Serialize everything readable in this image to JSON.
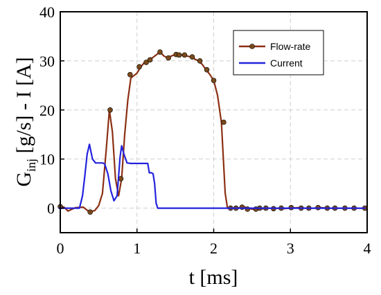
{
  "chart_data": {
    "type": "line",
    "xlabel": "t [ms]",
    "ylabel": {
      "base": "G",
      "sub": "inj",
      "rest": " [g/s]  - I [A]"
    },
    "xlim": [
      0,
      4
    ],
    "ylim": [
      -5,
      40
    ],
    "xticks": [
      "0",
      "1",
      "2",
      "3",
      "4"
    ],
    "yticks": [
      "0",
      "10",
      "20",
      "30",
      "40"
    ],
    "grid": true,
    "legend_position": "top-right",
    "series": [
      {
        "name": "Flow-rate",
        "color": "#8b2f12",
        "marker_fill": "#7a4a1c",
        "x": [
          -0.02,
          0.05,
          0.1,
          0.2,
          0.3,
          0.38,
          0.45,
          0.5,
          0.55,
          0.6,
          0.64,
          0.68,
          0.72,
          0.76,
          0.8,
          0.84,
          0.88,
          0.92,
          0.96,
          1.0,
          1.05,
          1.1,
          1.15,
          1.2,
          1.25,
          1.3,
          1.35,
          1.4,
          1.45,
          1.5,
          1.55,
          1.6,
          1.65,
          1.7,
          1.75,
          1.8,
          1.85,
          1.9,
          1.95,
          2.0,
          2.05,
          2.1,
          2.15,
          2.18,
          2.22,
          2.3,
          2.4,
          2.5,
          2.6,
          2.7,
          2.8,
          2.9,
          3.0,
          3.1,
          3.2,
          3.3,
          3.4,
          3.5,
          3.6,
          3.7,
          3.8,
          3.9,
          3.98
        ],
        "y": [
          0.3,
          0.2,
          -0.6,
          0.1,
          0.2,
          -0.8,
          -0.5,
          0.5,
          3.0,
          12.0,
          20.0,
          15.5,
          6.0,
          2.5,
          6.0,
          15.0,
          22.0,
          26.5,
          27.0,
          27.5,
          28.8,
          29.7,
          30.2,
          30.6,
          31.2,
          31.8,
          31.0,
          30.6,
          31.0,
          31.3,
          31.2,
          31.2,
          31.0,
          30.8,
          30.4,
          30.0,
          29.3,
          28.2,
          27.2,
          26.0,
          23.0,
          17.5,
          3.0,
          0.0,
          0.0,
          0.0,
          0.2,
          -0.2,
          -0.2,
          0.0,
          0.0,
          -0.1,
          0.0,
          0.1,
          0.0,
          0.0,
          0.1,
          0.0,
          0.0,
          0.0,
          0.0,
          0.0,
          0.0
        ],
        "markers_x": [
          0.0,
          0.39,
          0.65,
          0.79,
          0.91,
          1.03,
          1.12,
          1.17,
          1.3,
          1.41,
          1.51,
          1.55,
          1.62,
          1.72,
          1.82,
          1.91,
          2.0,
          2.13,
          2.22,
          2.29,
          2.37,
          2.44,
          2.55,
          2.6,
          2.68,
          2.78,
          2.88,
          3.01,
          3.14,
          3.24,
          3.36,
          3.48,
          3.58,
          3.71,
          3.83,
          3.97
        ],
        "markers_y": [
          0.3,
          -0.8,
          20.0,
          6.0,
          27.2,
          28.8,
          29.7,
          30.2,
          31.8,
          30.6,
          31.3,
          31.2,
          31.2,
          30.8,
          30.0,
          28.2,
          26.0,
          17.5,
          0.0,
          0.0,
          0.2,
          -0.2,
          -0.2,
          0.0,
          0.0,
          -0.1,
          0.0,
          0.1,
          0.0,
          0.0,
          0.1,
          0.0,
          0.0,
          0.0,
          0.0,
          0.0
        ]
      },
      {
        "name": "Current",
        "color": "#2222dd",
        "x": [
          -0.02,
          0.25,
          0.29,
          0.32,
          0.35,
          0.38,
          0.42,
          0.46,
          0.5,
          0.55,
          0.58,
          0.62,
          0.66,
          0.7,
          0.74,
          0.78,
          0.8,
          0.83,
          0.87,
          0.92,
          1.0,
          1.1,
          1.14,
          1.16,
          1.19,
          1.21,
          1.23,
          1.25,
          1.27,
          1.29,
          1.35,
          1.5,
          2.0,
          2.5,
          3.0,
          3.5,
          3.98
        ],
        "y": [
          0,
          0,
          2.5,
          6.5,
          11.0,
          13.0,
          10.0,
          9.2,
          9.2,
          9.2,
          9.0,
          7.0,
          3.5,
          1.5,
          2.5,
          10.5,
          12.7,
          11.0,
          9.2,
          9.1,
          9.1,
          9.1,
          9.1,
          7.2,
          7.2,
          7.0,
          5.0,
          1.0,
          0,
          0,
          0,
          0,
          0,
          0,
          0,
          0,
          0
        ]
      }
    ]
  }
}
